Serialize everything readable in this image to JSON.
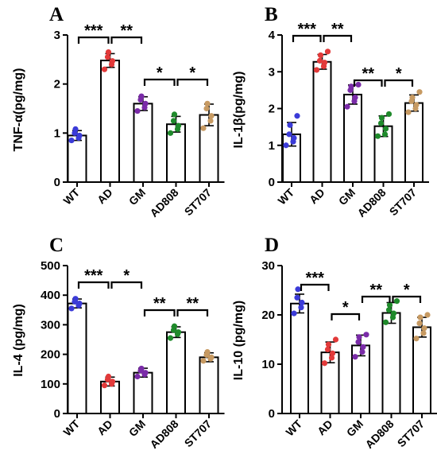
{
  "colors": {
    "WT": "#3b3bd8",
    "AD": "#e23a3a",
    "GM": "#7a2ba8",
    "AD808": "#1f8a2b",
    "ST707": "#c79a62"
  },
  "chart_data": [
    {
      "type": "bar",
      "panel": "A",
      "ylabel": "TNF-α(pg/mg)",
      "categories": [
        "WT",
        "AD",
        "GM",
        "AD808",
        "ST707"
      ],
      "values": [
        0.95,
        2.48,
        1.6,
        1.18,
        1.37
      ],
      "errors": [
        0.1,
        0.14,
        0.14,
        0.16,
        0.22
      ],
      "points": [
        [
          0.85,
          0.9,
          0.95,
          1.0,
          1.08
        ],
        [
          2.3,
          2.4,
          2.47,
          2.55,
          2.65
        ],
        [
          1.45,
          1.52,
          1.6,
          1.68,
          1.75
        ],
        [
          1.0,
          1.08,
          1.15,
          1.25,
          1.38
        ],
        [
          1.1,
          1.25,
          1.35,
          1.5,
          1.6
        ]
      ],
      "ylim": [
        0,
        3
      ],
      "yticks": [
        "0",
        "1",
        "2",
        "3"
      ],
      "significance": [
        {
          "from": 0,
          "to": 1,
          "label": "***"
        },
        {
          "from": 1,
          "to": 2,
          "label": "**"
        },
        {
          "from": 2,
          "to": 3,
          "label": "*"
        },
        {
          "from": 3,
          "to": 4,
          "label": "*"
        }
      ]
    },
    {
      "type": "bar",
      "panel": "B",
      "ylabel": "IL-1β(pg/mg)",
      "categories": [
        "WT",
        "AD",
        "GM",
        "AD808",
        "ST707"
      ],
      "values": [
        1.3,
        3.27,
        2.38,
        1.52,
        2.15
      ],
      "errors": [
        0.32,
        0.2,
        0.26,
        0.28,
        0.22
      ],
      "points": [
        [
          1.0,
          1.1,
          1.2,
          1.3,
          1.55,
          1.8
        ],
        [
          3.05,
          3.15,
          3.25,
          3.3,
          3.45,
          3.55
        ],
        [
          2.05,
          2.2,
          2.3,
          2.5,
          2.6,
          2.65
        ],
        [
          1.25,
          1.3,
          1.45,
          1.6,
          1.75,
          1.85
        ],
        [
          1.9,
          2.0,
          2.1,
          2.2,
          2.3,
          2.45
        ]
      ],
      "ylim": [
        0,
        4
      ],
      "yticks": [
        "0",
        "1",
        "2",
        "3",
        "4"
      ],
      "significance": [
        {
          "from": 0,
          "to": 1,
          "label": "***"
        },
        {
          "from": 1,
          "to": 2,
          "label": "**"
        },
        {
          "from": 2,
          "to": 3,
          "label": "**"
        },
        {
          "from": 3,
          "to": 4,
          "label": "*"
        }
      ]
    },
    {
      "type": "bar",
      "panel": "C",
      "ylabel": "IL-4 (pg/mg)",
      "categories": [
        "WT",
        "AD",
        "GM",
        "AD808",
        "ST707"
      ],
      "values": [
        372,
        108,
        138,
        275,
        190
      ],
      "errors": [
        15,
        15,
        15,
        18,
        15
      ],
      "points": [
        [
          355,
          365,
          372,
          378,
          388
        ],
        [
          95,
          100,
          108,
          115,
          125
        ],
        [
          125,
          132,
          138,
          145,
          152
        ],
        [
          255,
          268,
          275,
          282,
          295
        ],
        [
          178,
          185,
          190,
          198,
          208
        ]
      ],
      "ylim": [
        0,
        500
      ],
      "yticks": [
        "0",
        "100",
        "200",
        "300",
        "400",
        "500"
      ],
      "significance": [
        {
          "from": 0,
          "to": 1,
          "label": "***"
        },
        {
          "from": 1,
          "to": 2,
          "label": "*"
        },
        {
          "from": 2,
          "to": 3,
          "label": "**"
        },
        {
          "from": 3,
          "to": 4,
          "label": "**"
        }
      ]
    },
    {
      "type": "bar",
      "panel": "D",
      "ylabel": "IL-10 (pg/mg)",
      "categories": [
        "WT",
        "AD",
        "GM",
        "AD808",
        "ST707"
      ],
      "values": [
        22.3,
        12.4,
        13.8,
        20.4,
        17.5
      ],
      "errors": [
        1.9,
        2.1,
        2.1,
        2.1,
        2.0
      ],
      "points": [
        [
          20.3,
          21.5,
          22.5,
          23.5,
          25.2
        ],
        [
          10.2,
          11.3,
          12.2,
          13.0,
          14.0,
          15.0
        ],
        [
          11.5,
          12.5,
          13.5,
          14.5,
          15.5,
          16.0
        ],
        [
          18.5,
          19.5,
          20.3,
          21.0,
          22.0,
          22.8
        ],
        [
          15.2,
          16.3,
          17.3,
          18.3,
          19.5,
          20.0
        ]
      ],
      "ylim": [
        0,
        30
      ],
      "yticks": [
        "0",
        "10",
        "20",
        "30"
      ],
      "significance": [
        {
          "from": 0,
          "to": 1,
          "label": "***"
        },
        {
          "from": 1,
          "to": 2,
          "label": "*"
        },
        {
          "from": 2,
          "to": 3,
          "label": "**"
        },
        {
          "from": 3,
          "to": 4,
          "label": "*"
        }
      ]
    }
  ]
}
